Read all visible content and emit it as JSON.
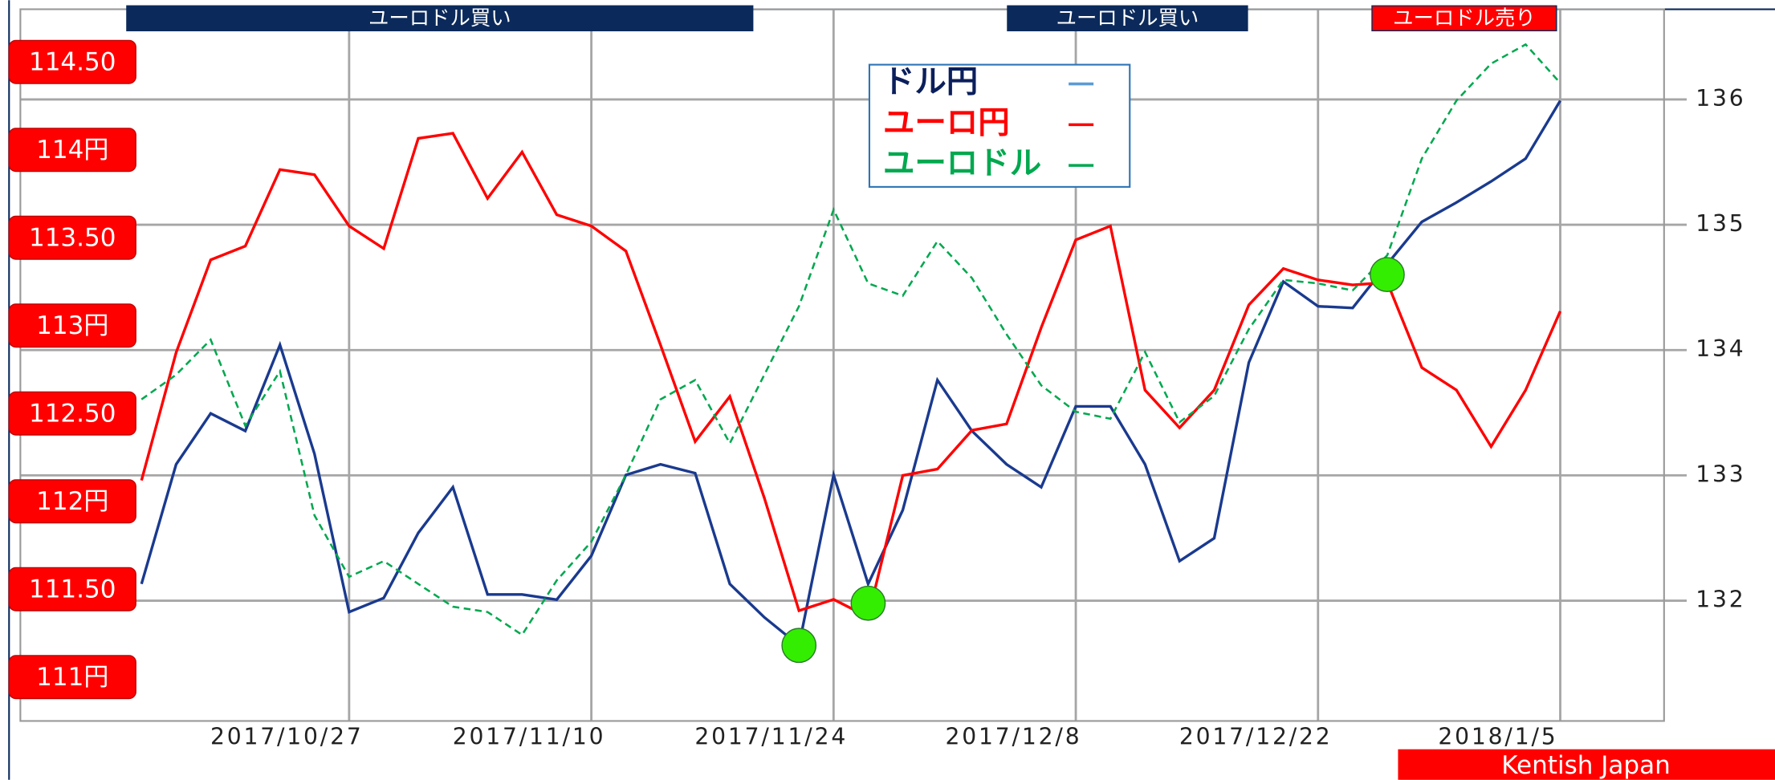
{
  "chart_data": {
    "type": "line",
    "x": [
      "2017/10/15",
      "2017/10/17",
      "2017/10/19",
      "2017/10/21",
      "2017/10/23",
      "2017/10/25",
      "2017/10/27",
      "2017/10/29",
      "2017/10/31",
      "2017/11/2",
      "2017/11/4",
      "2017/11/6",
      "2017/11/8",
      "2017/11/10",
      "2017/11/12",
      "2017/11/14",
      "2017/11/16",
      "2017/11/18",
      "2017/11/20",
      "2017/11/22",
      "2017/11/24",
      "2017/11/26",
      "2017/11/28",
      "2017/11/30",
      "2017/12/2",
      "2017/12/4",
      "2017/12/6",
      "2017/12/8",
      "2017/12/10",
      "2017/12/12",
      "2017/12/14",
      "2017/12/16",
      "2017/12/18",
      "2017/12/20",
      "2017/12/22",
      "2017/12/24",
      "2017/12/26",
      "2017/12/28",
      "2017/12/30",
      "2018/1/1",
      "2018/1/3",
      "2018/1/5"
    ],
    "series": [
      {
        "name": "ドル円",
        "color": "#1a3a8f",
        "legend_color": "#5b9bd5",
        "text_color": "#0b1f5c",
        "values": [
          111.53,
          112.21,
          112.5,
          112.4,
          112.89,
          112.27,
          111.37,
          111.45,
          111.82,
          112.08,
          111.47,
          111.47,
          111.44,
          111.69,
          112.15,
          112.21,
          112.16,
          111.53,
          111.34,
          111.18,
          112.15,
          111.53,
          111.95,
          112.69,
          112.4,
          112.21,
          112.08,
          112.54,
          112.54,
          112.21,
          111.66,
          111.79,
          112.79,
          113.25,
          113.11,
          113.1,
          113.35,
          113.59,
          113.7,
          113.82,
          113.95,
          114.28
        ]
      },
      {
        "name": "ユーロ円",
        "color": "#ff0000",
        "legend_color": "#ff0000",
        "text_color": "#ff0000",
        "axis": "y2",
        "values": [
          132.96,
          133.98,
          134.72,
          134.83,
          135.44,
          135.4,
          134.99,
          134.81,
          135.69,
          135.73,
          135.21,
          135.58,
          135.08,
          134.99,
          134.79,
          134.04,
          133.27,
          133.63,
          132.82,
          131.92,
          132.01,
          131.87,
          133.0,
          133.05,
          133.36,
          133.41,
          134.18,
          134.88,
          134.99,
          133.68,
          133.38,
          133.68,
          134.36,
          134.65,
          134.56,
          134.52,
          134.54,
          133.86,
          133.68,
          133.23,
          133.68,
          134.31
        ]
      },
      {
        "name": "ユーロドル",
        "color": "#00a84f",
        "legend_color": "#00a84f",
        "text_color": "#00a84f",
        "dash": true,
        "values": [
          112.58,
          112.72,
          112.92,
          112.43,
          112.74,
          111.92,
          111.57,
          111.66,
          111.53,
          111.4,
          111.37,
          111.24,
          111.55,
          111.77,
          112.15,
          112.58,
          112.69,
          112.33,
          112.72,
          113.11,
          113.66,
          113.24,
          113.17,
          113.48,
          113.27,
          112.95,
          112.66,
          112.51,
          112.47,
          112.85,
          112.45,
          112.6,
          112.98,
          113.26,
          113.24,
          113.2,
          113.4,
          113.95,
          114.28,
          114.49,
          114.6,
          114.38
        ]
      }
    ],
    "signals": {
      "x": [
        "2017/11/22",
        "2017/11/26",
        "2017/12/26"
      ],
      "values": [
        111.18,
        111.42,
        113.29
      ],
      "color": "#33ee00"
    },
    "banners": [
      {
        "label": "ユーロドル買い",
        "color": "#0b2a5b"
      },
      {
        "label": "ユーロドル買い",
        "color": "#0b2a5b"
      },
      {
        "label": "ユーロドル売り",
        "color": "#ff0000"
      }
    ],
    "xlim": [
      "2017/10/8",
      "2018/1/11"
    ],
    "xticks": [
      "2017/10/27",
      "2017/11/10",
      "2017/11/24",
      "2017/12/8",
      "2017/12/22",
      "2018/1/5"
    ],
    "ylim": [
      110.75,
      114.8
    ],
    "yticks": [
      {
        "value": 114.5,
        "label": "114.50"
      },
      {
        "value": 114,
        "label": "114円"
      },
      {
        "value": 113.5,
        "label": "113.50"
      },
      {
        "value": 113,
        "label": "113円"
      },
      {
        "value": 112.5,
        "label": "112.50"
      },
      {
        "value": 112,
        "label": "112円"
      },
      {
        "value": 111.5,
        "label": "111.50"
      },
      {
        "value": 111,
        "label": "111円"
      }
    ],
    "y2lim": [
      131.04,
      136.72
    ],
    "y2ticks": [
      132,
      133,
      134,
      135,
      136
    ],
    "grid": true,
    "legend": "top",
    "credit": "Kentish Japan"
  }
}
